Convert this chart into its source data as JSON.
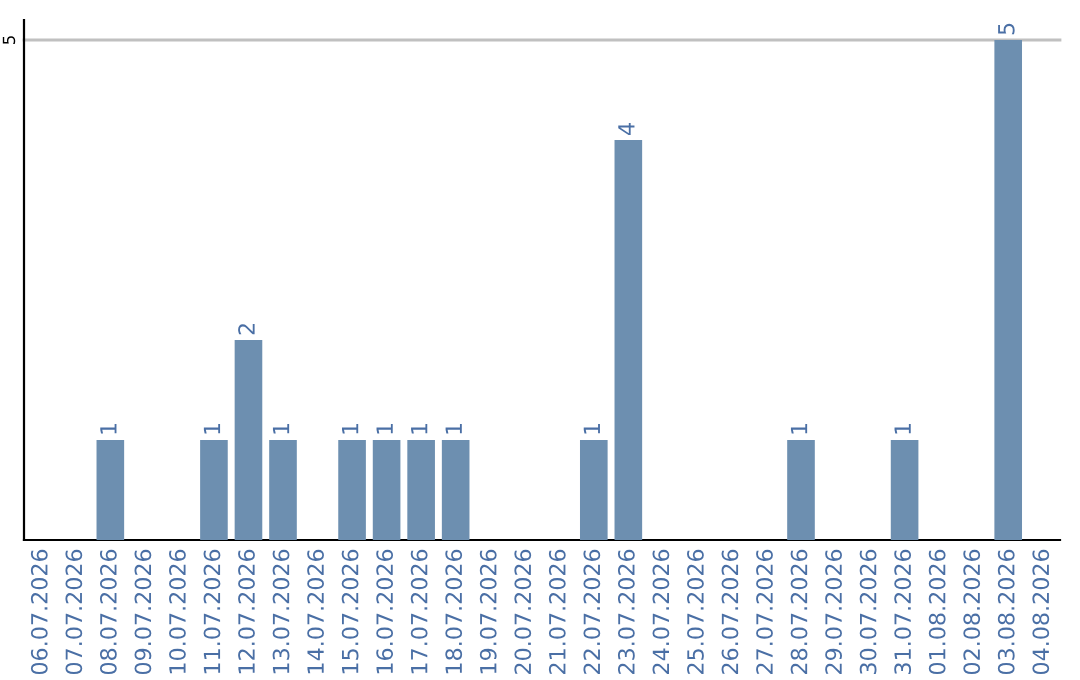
{
  "chart_data": {
    "type": "bar",
    "categories": [
      "06.07.2026",
      "07.07.2026",
      "08.07.2026",
      "09.07.2026",
      "10.07.2026",
      "11.07.2026",
      "12.07.2026",
      "13.07.2026",
      "14.07.2026",
      "15.07.2026",
      "16.07.2026",
      "17.07.2026",
      "18.07.2026",
      "19.07.2026",
      "20.07.2026",
      "21.07.2026",
      "22.07.2026",
      "23.07.2026",
      "24.07.2026",
      "25.07.2026",
      "26.07.2026",
      "27.07.2026",
      "28.07.2026",
      "29.07.2026",
      "30.07.2026",
      "31.07.2026",
      "01.08.2026",
      "02.08.2026",
      "03.08.2026",
      "04.08.2026"
    ],
    "values": [
      0,
      0,
      1,
      0,
      0,
      1,
      2,
      1,
      0,
      1,
      1,
      1,
      1,
      0,
      0,
      0,
      1,
      4,
      0,
      0,
      0,
      0,
      1,
      0,
      0,
      1,
      0,
      0,
      5,
      0
    ],
    "value_labels": [
      null,
      null,
      "1",
      null,
      null,
      "1",
      "2",
      "1",
      null,
      "1",
      "1",
      "1",
      "1",
      null,
      null,
      null,
      "1",
      "4",
      null,
      null,
      null,
      null,
      "1",
      null,
      null,
      "1",
      null,
      null,
      "5",
      null
    ],
    "color": "#6d8fb0",
    "ylim": [
      0,
      5.2
    ],
    "yticks": [
      5
    ],
    "grid": "y"
  }
}
